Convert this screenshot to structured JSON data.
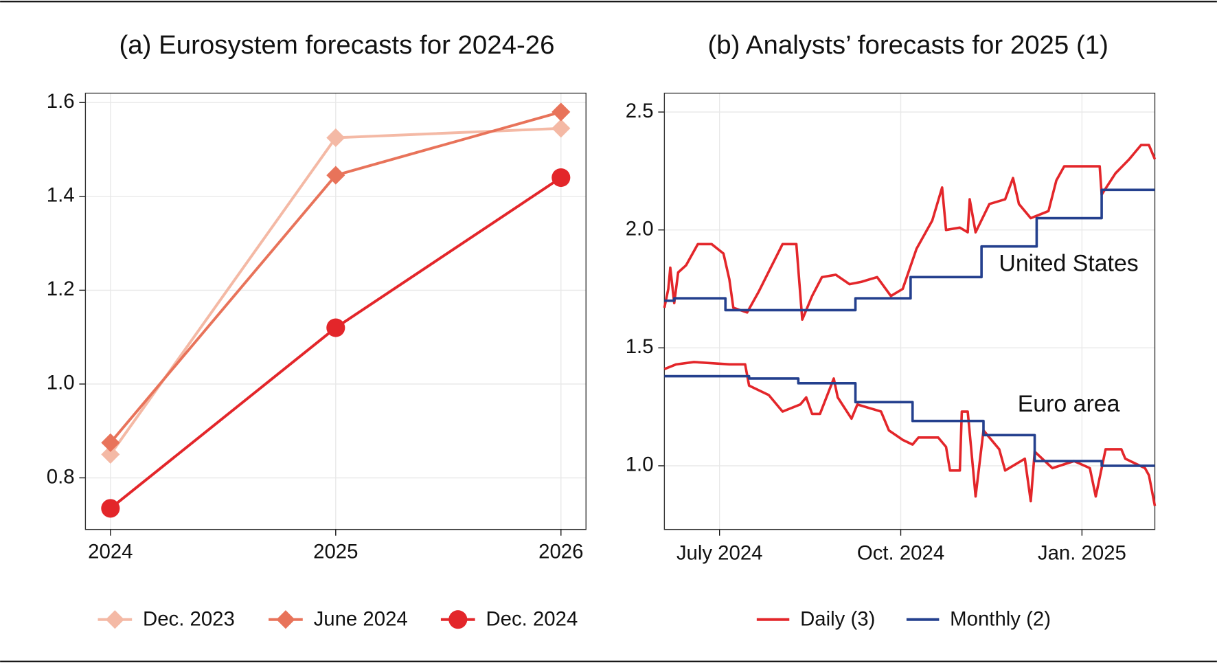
{
  "chart_data": [
    {
      "type": "line",
      "title": "(a) Eurosystem forecasts for 2024-26",
      "categories": [
        "2024",
        "2025",
        "2026"
      ],
      "series": [
        {
          "name": "Dec. 2023",
          "color": "#f4b9a5",
          "marker": "diamond",
          "values": [
            0.85,
            1.525,
            1.545
          ]
        },
        {
          "name": "June 2024",
          "color": "#e8735a",
          "marker": "diamond",
          "values": [
            0.875,
            1.445,
            1.58
          ]
        },
        {
          "name": "Dec. 2024",
          "color": "#e3262a",
          "marker": "circle",
          "values": [
            0.735,
            1.12,
            1.44
          ]
        }
      ],
      "ylim": [
        0.69,
        1.62
      ],
      "yticks": [
        0.8,
        {
          "value": 1,
          "label": "1.0"
        },
        1.2,
        1.4,
        1.6
      ],
      "grid": true
    },
    {
      "type": "line",
      "title": "(b) Analysts’ forecasts for 2025 (1)",
      "series": [
        {
          "name": "Daily (3)",
          "color": "#e3262a",
          "region": "United States",
          "x": [
            "2024-06-03",
            "2024-06-05",
            "2024-06-06",
            "2024-06-08",
            "2024-06-10",
            "2024-06-14",
            "2024-06-20",
            "2024-06-27",
            "2024-07-03",
            "2024-07-06",
            "2024-07-08",
            "2024-07-15",
            "2024-07-21",
            "2024-07-27",
            "2024-08-02",
            "2024-08-09",
            "2024-08-12",
            "2024-08-17",
            "2024-08-22",
            "2024-08-29",
            "2024-09-05",
            "2024-09-11",
            "2024-09-19",
            "2024-09-26",
            "2024-10-02",
            "2024-10-09",
            "2024-10-17",
            "2024-10-22",
            "2024-10-24",
            "2024-10-31",
            "2024-11-04",
            "2024-11-05",
            "2024-11-08",
            "2024-11-15",
            "2024-11-23",
            "2024-11-27",
            "2024-11-30",
            "2024-12-06",
            "2024-12-15",
            "2024-12-19",
            "2024-12-23",
            "2025-01-10",
            "2025-01-11",
            "2025-01-18",
            "2025-01-25",
            "2025-01-31",
            "2025-02-04",
            "2025-02-07"
          ],
          "values": [
            1.67,
            1.75,
            1.84,
            1.69,
            1.82,
            1.85,
            1.94,
            1.94,
            1.9,
            1.79,
            1.67,
            1.65,
            1.74,
            1.84,
            1.94,
            1.94,
            1.62,
            1.72,
            1.8,
            1.81,
            1.77,
            1.78,
            1.8,
            1.72,
            1.75,
            1.92,
            2.04,
            2.18,
            2.0,
            2.01,
            1.99,
            2.13,
            1.99,
            2.11,
            2.13,
            2.22,
            2.11,
            2.05,
            2.08,
            2.21,
            2.27,
            2.27,
            2.15,
            2.24,
            2.3,
            2.36,
            2.36,
            2.3
          ]
        },
        {
          "name": "Monthly (2)",
          "color": "#24408e",
          "region": null,
          "step": true,
          "x": [
            "2024-06-03",
            "2024-06-08",
            "2024-07-04",
            "2024-09-08",
            "2024-10-06",
            "2024-11-11",
            "2024-12-09",
            "2025-01-11",
            "2025-02-07"
          ],
          "values": [
            1.7,
            1.71,
            1.66,
            1.71,
            1.8,
            1.93,
            2.05,
            2.17,
            2.17
          ]
        },
        {
          "name": "Daily (3)",
          "color": "#e3262a",
          "region": "Euro area",
          "x": [
            "2024-06-03",
            "2024-06-09",
            "2024-06-18",
            "2024-07-06",
            "2024-07-14",
            "2024-07-16",
            "2024-07-26",
            "2024-08-02",
            "2024-08-11",
            "2024-08-14",
            "2024-08-17",
            "2024-08-21",
            "2024-08-28",
            "2024-08-30",
            "2024-09-06",
            "2024-09-09",
            "2024-09-21",
            "2024-09-25",
            "2024-10-02",
            "2024-10-07",
            "2024-10-10",
            "2024-10-20",
            "2024-10-24",
            "2024-10-26",
            "2024-10-31",
            "2024-11-01",
            "2024-11-04",
            "2024-11-08",
            "2024-11-12",
            "2024-11-20",
            "2024-11-23",
            "2024-12-03",
            "2024-12-06",
            "2024-12-08",
            "2024-12-17",
            "2024-12-28",
            "2025-01-05",
            "2025-01-08",
            "2025-01-13",
            "2025-01-21",
            "2025-01-23",
            "2025-02-02",
            "2025-02-04",
            "2025-02-07"
          ],
          "values": [
            1.41,
            1.43,
            1.44,
            1.43,
            1.43,
            1.34,
            1.3,
            1.23,
            1.26,
            1.29,
            1.22,
            1.22,
            1.37,
            1.29,
            1.2,
            1.26,
            1.23,
            1.15,
            1.11,
            1.09,
            1.12,
            1.12,
            1.08,
            0.98,
            0.98,
            1.23,
            1.23,
            0.87,
            1.15,
            1.07,
            0.98,
            1.03,
            0.85,
            1.06,
            0.99,
            1.02,
            0.99,
            0.87,
            1.07,
            1.07,
            1.03,
            0.99,
            0.96,
            0.83
          ]
        },
        {
          "name": "Monthly (2)",
          "color": "#24408e",
          "region": null,
          "step": true,
          "x": [
            "2024-06-03",
            "2024-07-16",
            "2024-08-10",
            "2024-09-08",
            "2024-10-07",
            "2024-11-12",
            "2024-12-08",
            "2025-01-11",
            "2025-02-07"
          ],
          "values": [
            1.38,
            1.37,
            1.35,
            1.27,
            1.19,
            1.13,
            1.02,
            1.0,
            1.0
          ]
        }
      ],
      "xlim": [
        "2024-06-03",
        "2025-02-07"
      ],
      "xticks": [
        {
          "value": "2024-07-01",
          "label": "July 2024"
        },
        {
          "value": "2024-10-01",
          "label": "Oct. 2024"
        },
        {
          "value": "2025-01-01",
          "label": "Jan. 2025"
        }
      ],
      "ylim": [
        0.73,
        2.58
      ],
      "yticks": [
        {
          "value": 1,
          "label": "1.0"
        },
        1.5,
        {
          "value": 2,
          "label": "2.0"
        },
        2.5
      ],
      "grid": true
    }
  ]
}
